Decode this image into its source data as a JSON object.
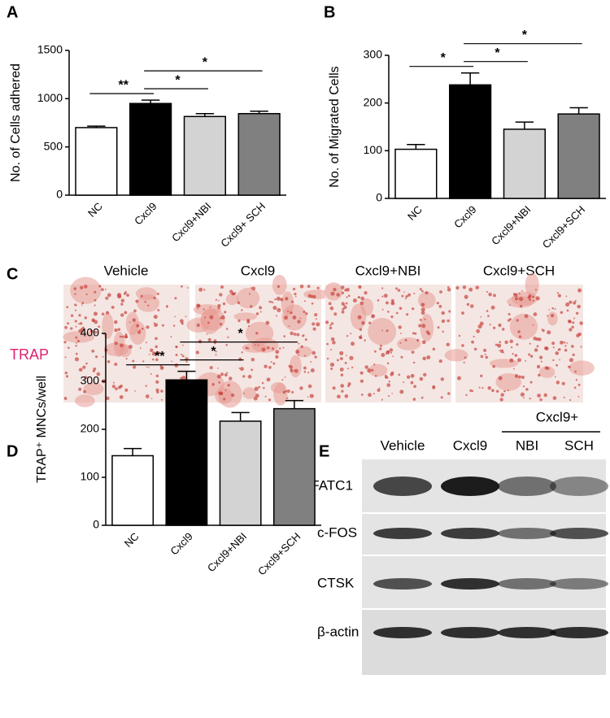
{
  "chart_data": [
    {
      "type": "bar",
      "panel": "A",
      "ylabel": "No. of Cells adhered",
      "categories": [
        "NC",
        "Cxcl9",
        "Cxcl9+NBI",
        "Cxcl9+ SCH"
      ],
      "values": [
        700,
        950,
        815,
        845
      ],
      "errors": [
        15,
        35,
        30,
        25
      ],
      "colors": [
        "#ffffff",
        "#000000",
        "#d3d3d3",
        "#808080"
      ],
      "ylim": [
        0,
        1500
      ],
      "yticks": [
        0,
        500,
        1000,
        1500
      ],
      "comparisons": [
        {
          "text": "**",
          "from": "NC",
          "to": "Cxcl9"
        },
        {
          "text": "*",
          "from": "Cxcl9",
          "to": "Cxcl9+NBI"
        },
        {
          "text": "*",
          "from": "Cxcl9",
          "to": "Cxcl9+ SCH"
        }
      ]
    },
    {
      "type": "bar",
      "panel": "B",
      "ylabel": "No. of Migrated Cells",
      "categories": [
        "NC",
        "Cxcl9",
        "Cxcl9+NBI",
        "Cxcl9+SCH"
      ],
      "values": [
        103,
        238,
        145,
        177
      ],
      "errors": [
        10,
        25,
        15,
        13
      ],
      "colors": [
        "#ffffff",
        "#000000",
        "#d3d3d3",
        "#808080"
      ],
      "ylim": [
        0,
        300
      ],
      "yticks": [
        0,
        100,
        200,
        300
      ],
      "comparisons": [
        {
          "text": "*",
          "from": "NC",
          "to": "Cxcl9"
        },
        {
          "text": "*",
          "from": "Cxcl9",
          "to": "Cxcl9+NBI"
        },
        {
          "text": "*",
          "from": "Cxcl9",
          "to": "Cxcl9+SCH"
        }
      ]
    },
    {
      "type": "bar",
      "panel": "D",
      "ylabel": "TRAP⁺ MNCs/well",
      "categories": [
        "NC",
        "Cxcl9",
        "Cxcl9+NBI",
        "Cxcl9+SCH"
      ],
      "values": [
        145,
        303,
        217,
        243
      ],
      "errors": [
        15,
        18,
        18,
        17
      ],
      "colors": [
        "#ffffff",
        "#000000",
        "#d3d3d3",
        "#808080"
      ],
      "ylim": [
        0,
        400
      ],
      "yticks": [
        0,
        100,
        200,
        300,
        400
      ],
      "comparisons": [
        {
          "text": "**",
          "from": "NC",
          "to": "Cxcl9"
        },
        {
          "text": "*",
          "from": "Cxcl9",
          "to": "Cxcl9+NBI"
        },
        {
          "text": "*",
          "from": "Cxcl9",
          "to": "Cxcl9+SCH"
        }
      ]
    }
  ],
  "panel_c": {
    "panel": "C",
    "row_label": "TRAP",
    "columns": [
      "Vehicle",
      "Cxcl9",
      "Cxcl9+NBI",
      "Cxcl9+SCH"
    ]
  },
  "panel_e": {
    "panel": "E",
    "group_label": "Cxcl9+",
    "columns": [
      "Vehicle",
      "Cxcl9",
      "NBI",
      "SCH"
    ],
    "rows": [
      "NFATC1",
      "c-FOS",
      "CTSK",
      "β-actin"
    ]
  }
}
